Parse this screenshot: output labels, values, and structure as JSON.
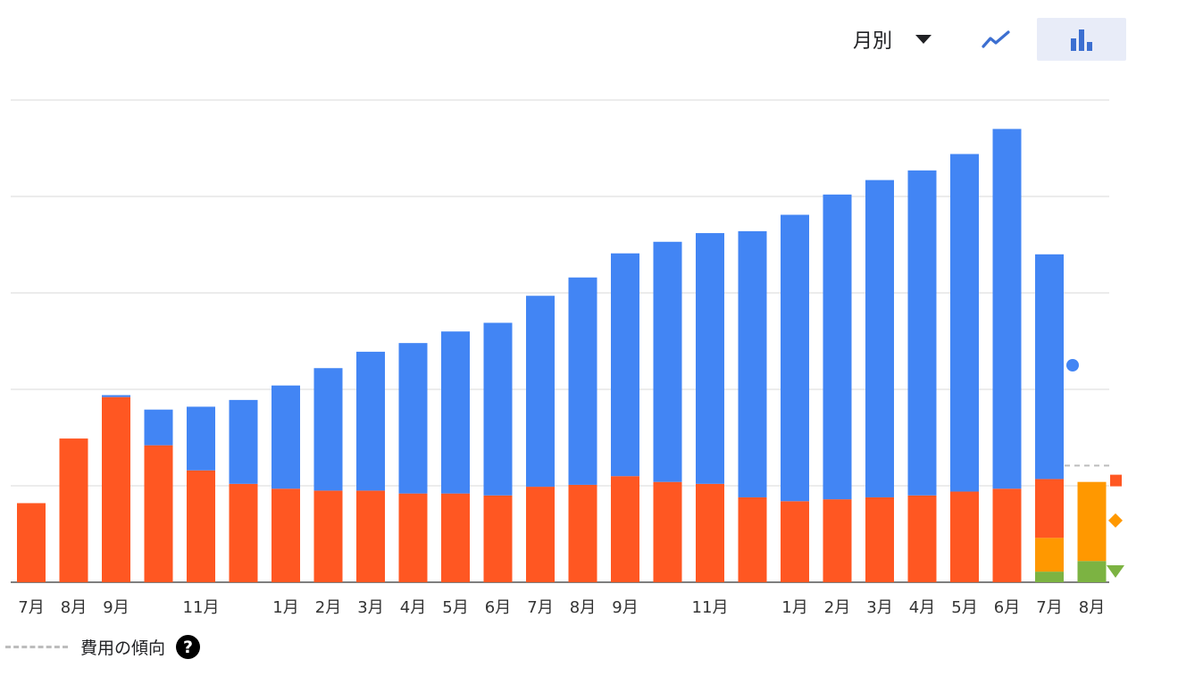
{
  "toolbar": {
    "granularity_label": "月別",
    "line_view_icon": "trending-line-icon",
    "bar_view_icon": "bar-chart-icon",
    "active_view": "bar"
  },
  "legend": {
    "trend_label": "費用の傾向",
    "help_glyph": "?"
  },
  "colors": {
    "blue": "#4285f4",
    "red": "#ff5722",
    "orange": "#ff9800",
    "green": "#7cb342",
    "grid": "#e0e0e0",
    "trend": "#bdbdbd"
  },
  "chart_data": {
    "type": "bar",
    "stacked": true,
    "grid": true,
    "ylim": [
      0,
      500
    ],
    "gridlines": [
      0,
      100,
      200,
      300,
      400,
      500
    ],
    "categories": [
      "7月",
      "8月",
      "9月",
      "",
      "11月",
      "",
      "1月",
      "2月",
      "3月",
      "4月",
      "5月",
      "6月",
      "7月",
      "8月",
      "9月",
      "",
      "11月",
      "",
      "1月",
      "2月",
      "3月",
      "4月",
      "5月",
      "6月",
      "7月",
      "8月"
    ],
    "series": [
      {
        "key": "green",
        "color": "#7cb342",
        "values": [
          0,
          0,
          0,
          0,
          0,
          0,
          0,
          0,
          0,
          0,
          0,
          0,
          0,
          0,
          0,
          0,
          0,
          0,
          0,
          0,
          0,
          0,
          0,
          0,
          11,
          22
        ]
      },
      {
        "key": "orange",
        "color": "#ff9800",
        "values": [
          0,
          0,
          0,
          0,
          0,
          0,
          0,
          0,
          0,
          0,
          0,
          0,
          0,
          0,
          0,
          0,
          0,
          0,
          0,
          0,
          0,
          0,
          0,
          0,
          35,
          82
        ]
      },
      {
        "key": "red",
        "color": "#ff5722",
        "values": [
          82,
          149,
          192,
          142,
          116,
          102,
          97,
          95,
          95,
          92,
          92,
          90,
          99,
          101,
          110,
          104,
          102,
          88,
          84,
          86,
          88,
          90,
          94,
          97,
          61,
          0
        ]
      },
      {
        "key": "blue",
        "color": "#4285f4",
        "values": [
          0,
          0,
          2,
          37,
          66,
          87,
          107,
          127,
          144,
          156,
          168,
          179,
          198,
          215,
          231,
          249,
          260,
          276,
          297,
          316,
          329,
          337,
          350,
          373,
          233,
          0
        ]
      }
    ],
    "trend_markers": [
      {
        "shape": "circle",
        "color": "#4285f4",
        "value": 225
      },
      {
        "shape": "square",
        "color": "#ff5722",
        "value": 105
      },
      {
        "shape": "diamond",
        "color": "#ff9800",
        "value": 64
      },
      {
        "shape": "triangle",
        "color": "#7cb342",
        "value": 12
      }
    ],
    "trend_line_value": 121
  }
}
